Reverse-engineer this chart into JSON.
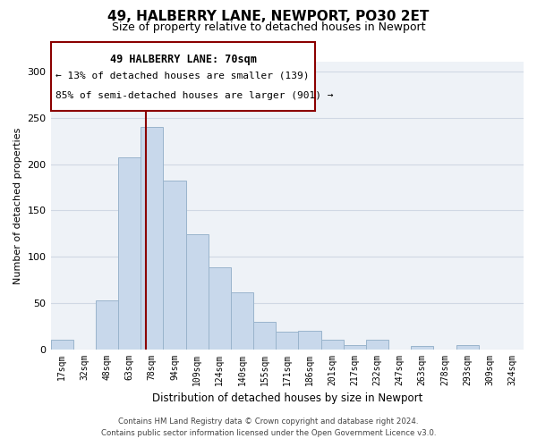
{
  "title": "49, HALBERRY LANE, NEWPORT, PO30 2ET",
  "subtitle": "Size of property relative to detached houses in Newport",
  "xlabel": "Distribution of detached houses by size in Newport",
  "ylabel": "Number of detached properties",
  "bar_color": "#c8d8eb",
  "bar_edge_color": "#9ab4cc",
  "categories": [
    "17sqm",
    "32sqm",
    "48sqm",
    "63sqm",
    "78sqm",
    "94sqm",
    "109sqm",
    "124sqm",
    "140sqm",
    "155sqm",
    "171sqm",
    "186sqm",
    "201sqm",
    "217sqm",
    "232sqm",
    "247sqm",
    "263sqm",
    "278sqm",
    "293sqm",
    "309sqm",
    "324sqm"
  ],
  "values": [
    11,
    0,
    53,
    207,
    240,
    182,
    124,
    89,
    62,
    30,
    19,
    20,
    11,
    5,
    11,
    0,
    4,
    0,
    5,
    0,
    0
  ],
  "ylim": [
    0,
    310
  ],
  "yticks": [
    0,
    50,
    100,
    150,
    200,
    250,
    300
  ],
  "vline_x": 3.72,
  "annotation_text_line1": "49 HALBERRY LANE: 70sqm",
  "annotation_text_line2": "← 13% of detached houses are smaller (139)",
  "annotation_text_line3": "85% of semi-detached houses are larger (901) →",
  "vline_color": "#8b0000",
  "grid_color": "#d0d8e4",
  "background_color": "#eef2f7",
  "footer_line1": "Contains HM Land Registry data © Crown copyright and database right 2024.",
  "footer_line2": "Contains public sector information licensed under the Open Government Licence v3.0."
}
